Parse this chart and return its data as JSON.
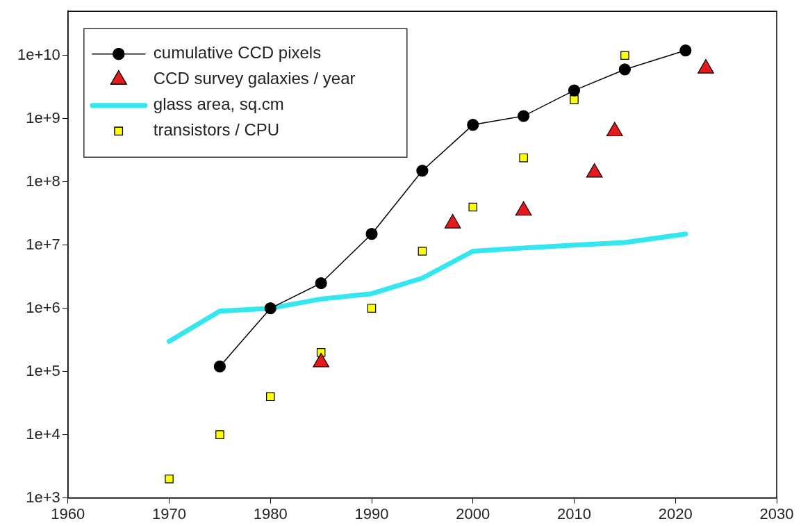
{
  "chart_data": {
    "type": "line",
    "series": [
      {
        "name": "cumulative CCD pixels",
        "type": "line",
        "color": "#000000",
        "marker": "circle",
        "x": [
          1975,
          1980,
          1985,
          1990,
          1995,
          2000,
          2005,
          2010,
          2015,
          2021
        ],
        "values": [
          120000,
          1000000,
          2500000,
          15000000,
          150000000,
          800000000,
          1100000000,
          2800000000,
          6000000000,
          12000000000
        ]
      },
      {
        "name": "CCD survey galaxies / year",
        "type": "scatter",
        "color": "#e41a1c",
        "marker": "triangle",
        "x": [
          1985,
          1998,
          2005,
          2012,
          2014,
          2023
        ],
        "values": [
          140000,
          22000000,
          35000000,
          140000000,
          630000000,
          6200000000
        ]
      },
      {
        "name": "glass area, sq.cm",
        "type": "line",
        "color": "#33e6f0",
        "marker": "none",
        "x": [
          1970,
          1975,
          1980,
          1985,
          1990,
          1995,
          2000,
          2005,
          2010,
          2015,
          2021
        ],
        "values": [
          300000,
          900000,
          1000000,
          1400000,
          1700000,
          3000000,
          8000000,
          9000000,
          10000000,
          11000000,
          15000000
        ]
      },
      {
        "name": "transistors / CPU",
        "type": "scatter",
        "color": "#ffff00",
        "marker": "square",
        "x": [
          1970,
          1975,
          1980,
          1985,
          1990,
          1995,
          2000,
          2005,
          2010,
          2015
        ],
        "values": [
          2000,
          10000,
          40000,
          200000,
          1000000,
          8000000,
          40000000,
          240000000,
          2000000000,
          10000000000
        ]
      }
    ],
    "xlim": [
      1960,
      2030
    ],
    "xticks": [
      1960,
      1970,
      1980,
      1990,
      2000,
      2010,
      2020,
      2030
    ],
    "log": "y",
    "ylim": [
      1000,
      50000000000
    ],
    "yticks": [
      {
        "value": 1000,
        "label": "1e+3"
      },
      {
        "value": 10000,
        "label": "1e+4"
      },
      {
        "value": 100000,
        "label": "1e+5"
      },
      {
        "value": 1000000,
        "label": "1e+6"
      },
      {
        "value": 10000000,
        "label": "1e+7"
      },
      {
        "value": 100000000,
        "label": "1e+8"
      },
      {
        "value": 1000000000,
        "label": "1e+9"
      },
      {
        "value": 10000000000,
        "label": "1e+10"
      }
    ],
    "grid": false,
    "legend": "top left"
  }
}
